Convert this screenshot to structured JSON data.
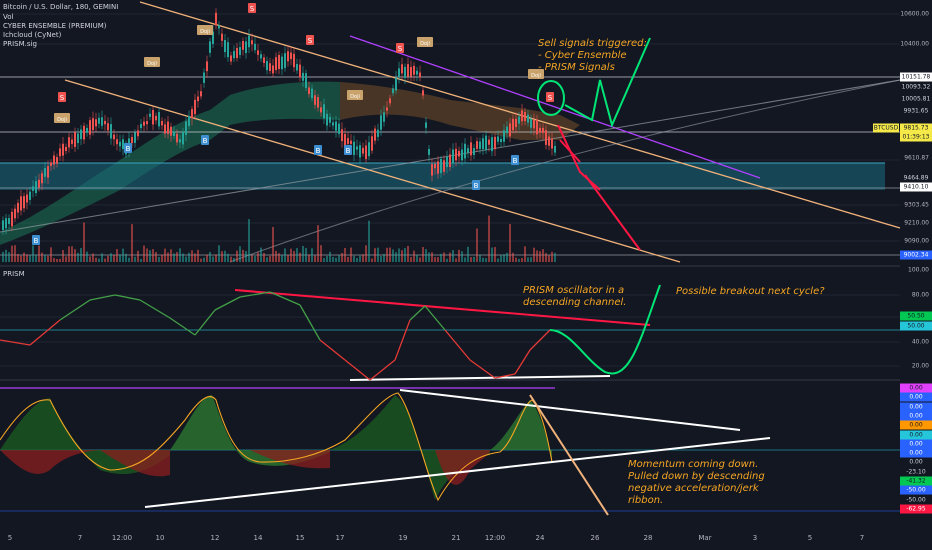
{
  "header": {
    "symbol": "Bitcoin / U.S. Dollar, 180, GEMINI",
    "lines": [
      "Vol",
      "CYBER ENSEMBLE (PREMIUM)",
      "Ichcloud (CyNet)",
      "PRISM.sig"
    ]
  },
  "subpanel_label": "PRISM",
  "annotations": {
    "sell": "Sell signals triggered:\n- Cyber Ensemble\n- PRISM Signals",
    "prism_channel": "PRISM oscillator in a\ndescending channel.",
    "breakout": "Possible breakout next cycle?",
    "momentum": "Momentum coming down.\nPulled down by descending\nnegative acceleration/jerk\nribbon."
  },
  "price_axis": {
    "labels": [
      "10600.00",
      "10400.00",
      "9610.87",
      "9303.45",
      "9210.00",
      "9090.00"
    ],
    "tags": [
      {
        "text": "10151.78",
        "bg": "#ffffff",
        "fg": "#131722"
      },
      {
        "text": "10093.32",
        "bg": "#131722",
        "fg": "#d1d4dc"
      },
      {
        "text": "10005.81",
        "bg": "#131722",
        "fg": "#d1d4dc"
      },
      {
        "text": "9931.65",
        "bg": "#131722",
        "fg": "#d1d4dc"
      },
      {
        "text": "9815.73",
        "bg": "#f5e94a",
        "fg": "#131722"
      },
      {
        "text": "01:39:13",
        "bg": "#f5e94a",
        "fg": "#131722"
      },
      {
        "text": "9464.89",
        "bg": "#131722",
        "fg": "#d1d4dc"
      },
      {
        "text": "9410.10",
        "bg": "#ffffff",
        "fg": "#131722"
      },
      {
        "text": "9002.34",
        "bg": "#2962ff",
        "fg": "#ffffff"
      }
    ],
    "symbol_tag": "BTCUSD"
  },
  "prism_axis": {
    "labels": [
      "100.00",
      "80.00",
      "60.00",
      "40.00",
      "20.00"
    ],
    "tags": [
      {
        "text": "50.50",
        "bg": "#00c853",
        "fg": "#131722"
      },
      {
        "text": "50.00",
        "bg": "#26c6da",
        "fg": "#131722"
      }
    ]
  },
  "momentum_axis": {
    "tags": [
      {
        "text": "0.00",
        "bg": "#e040fb",
        "fg": "#131722"
      },
      {
        "text": "0.00",
        "bg": "#2962ff",
        "fg": "#ffffff"
      },
      {
        "text": "0.00",
        "bg": "#2962ff",
        "fg": "#ffffff"
      },
      {
        "text": "0.00",
        "bg": "#2962ff",
        "fg": "#ffffff"
      },
      {
        "text": "0.00",
        "bg": "#ff9800",
        "fg": "#131722"
      },
      {
        "text": "0.00",
        "bg": "#26c6da",
        "fg": "#131722"
      },
      {
        "text": "0.00",
        "bg": "#2962ff",
        "fg": "#ffffff"
      },
      {
        "text": "0.00",
        "bg": "#2962ff",
        "fg": "#ffffff"
      },
      {
        "text": "0.00",
        "bg": "#131722",
        "fg": "#d1d4dc"
      },
      {
        "text": "-23.10",
        "bg": "#131722",
        "fg": "#d1d4dc"
      },
      {
        "text": "-41.32",
        "bg": "#00c853",
        "fg": "#131722"
      },
      {
        "text": "-50.00",
        "bg": "#2962ff",
        "fg": "#ffffff"
      },
      {
        "text": "-50.00",
        "bg": "#131722",
        "fg": "#d1d4dc"
      },
      {
        "text": "-62.95",
        "bg": "#ff1744",
        "fg": "#ffffff"
      }
    ]
  },
  "time_axis": [
    "5",
    "7",
    "12:00",
    "10",
    "12",
    "14",
    "15",
    "17",
    "19",
    "21",
    "12:00",
    "24",
    "26",
    "28",
    "Mar",
    "3",
    "5",
    "7"
  ],
  "signals": {
    "sell": "S",
    "buy": "B",
    "doji": "Doji"
  },
  "colors": {
    "background": "#131722",
    "bull": "#26a69a",
    "bear": "#ef5350",
    "annotation": "#f5a623",
    "arrow_green": "#00e676",
    "arrow_red": "#ff1744",
    "trend_orange": "#f0b27a",
    "trend_purple": "#b040ff"
  }
}
